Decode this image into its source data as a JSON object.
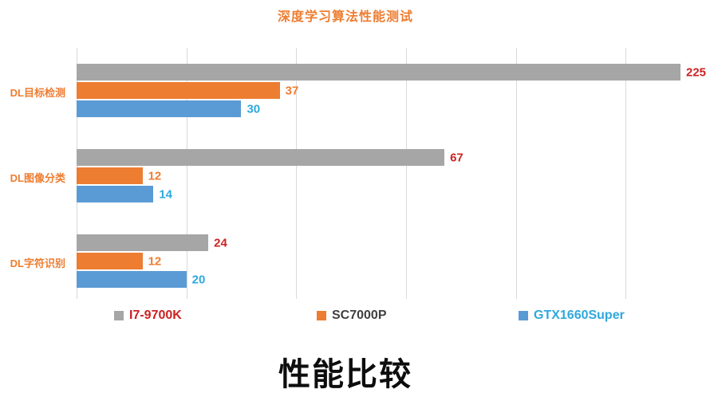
{
  "title": "深度学习算法性能测试",
  "bottom_title": "性能比较",
  "colors": {
    "title": "#ED7D31",
    "category_label": "#ED7D31",
    "gridline": "#D9D9D9",
    "axis_line": "#D9D9D9",
    "background": "#FFFFFF",
    "bottom_title": "#0D0D0D"
  },
  "chart_data": {
    "type": "bar",
    "orientation": "horizontal",
    "title": "深度学习算法性能测试",
    "subtitle": "性能比较",
    "categories": [
      "DL目标检测",
      "DL图像分类",
      "DL字符识别"
    ],
    "series": [
      {
        "name": "I7-9700K",
        "color": "#A6A6A6",
        "label_color": "#CC2222",
        "legend_text_color": "#CC2222",
        "values": [
          225,
          67,
          24
        ]
      },
      {
        "name": "SC7000P",
        "color": "#ED7D31",
        "label_color": "#ED7D31",
        "legend_text_color": "#404040",
        "values": [
          37,
          12,
          12
        ]
      },
      {
        "name": "GTX1660Super",
        "color": "#5B9BD5",
        "label_color": "#2FA8DC",
        "legend_text_color": "#2FA8DC",
        "values": [
          30,
          14,
          20
        ]
      }
    ],
    "xlim": [
      0,
      110
    ],
    "gridline_values": [
      0,
      20,
      40,
      60,
      80,
      100
    ],
    "grid": true,
    "axis_tick_labels_visible": false,
    "legend_position": "bottom",
    "data_labels": "outside-end",
    "clipping_note": "bar value 225 exceeds axis max and is clipped at plot edge"
  }
}
